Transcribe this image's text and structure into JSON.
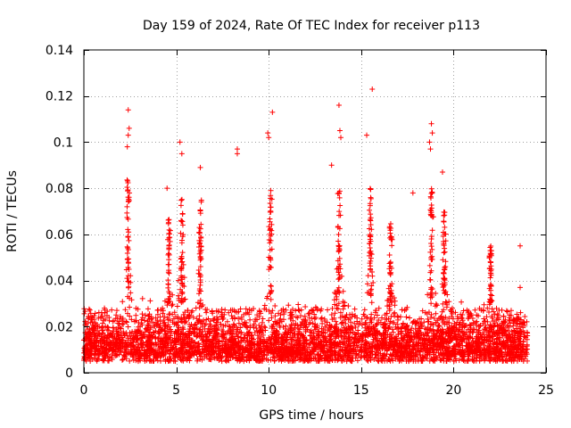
{
  "chart_data": {
    "type": "scatter",
    "title": "Day 159 of 2024, Rate Of TEC Index for receiver p113",
    "xlabel": "GPS time / hours",
    "ylabel": "ROTI / TECUs",
    "xlim": [
      0,
      25
    ],
    "ylim": [
      0,
      0.14
    ],
    "x_ticks": [
      0,
      5,
      10,
      15,
      20,
      25
    ],
    "x_tick_labels": [
      "0",
      "5",
      "10",
      "15",
      "20",
      "25"
    ],
    "y_ticks": [
      0,
      0.02,
      0.04,
      0.06,
      0.08,
      0.1,
      0.12,
      0.14
    ],
    "y_tick_labels": [
      "0",
      "0.02",
      "0.04",
      "0.06",
      "0.08",
      "0.1",
      "0.12",
      "0.14"
    ],
    "grid": true,
    "marker": "plus",
    "marker_color": "#ff0000",
    "x_range_of_data": [
      0,
      24
    ],
    "typical_band": [
      0.005,
      0.03
    ],
    "notable_points": [
      {
        "x": 2.4,
        "y": 0.114
      },
      {
        "x": 2.45,
        "y": 0.106
      },
      {
        "x": 2.4,
        "y": 0.103
      },
      {
        "x": 2.35,
        "y": 0.098
      },
      {
        "x": 5.2,
        "y": 0.1
      },
      {
        "x": 5.3,
        "y": 0.095
      },
      {
        "x": 8.3,
        "y": 0.097
      },
      {
        "x": 8.3,
        "y": 0.095
      },
      {
        "x": 10.2,
        "y": 0.113
      },
      {
        "x": 9.95,
        "y": 0.104
      },
      {
        "x": 10.0,
        "y": 0.102
      },
      {
        "x": 13.8,
        "y": 0.116
      },
      {
        "x": 13.85,
        "y": 0.105
      },
      {
        "x": 13.9,
        "y": 0.102
      },
      {
        "x": 13.4,
        "y": 0.09
      },
      {
        "x": 15.3,
        "y": 0.103
      },
      {
        "x": 15.6,
        "y": 0.123
      },
      {
        "x": 18.8,
        "y": 0.108
      },
      {
        "x": 18.85,
        "y": 0.104
      },
      {
        "x": 18.7,
        "y": 0.1
      },
      {
        "x": 18.75,
        "y": 0.097
      },
      {
        "x": 19.4,
        "y": 0.087
      },
      {
        "x": 6.3,
        "y": 0.089
      },
      {
        "x": 4.5,
        "y": 0.08
      },
      {
        "x": 17.8,
        "y": 0.078
      },
      {
        "x": 23.6,
        "y": 0.055
      },
      {
        "x": 23.6,
        "y": 0.037
      }
    ],
    "activity_peaks": [
      {
        "x": 2.4,
        "y": 0.085
      },
      {
        "x": 4.6,
        "y": 0.07
      },
      {
        "x": 5.3,
        "y": 0.08
      },
      {
        "x": 6.3,
        "y": 0.075
      },
      {
        "x": 10.1,
        "y": 0.08
      },
      {
        "x": 13.8,
        "y": 0.08
      },
      {
        "x": 15.5,
        "y": 0.08
      },
      {
        "x": 16.6,
        "y": 0.065
      },
      {
        "x": 18.8,
        "y": 0.08
      },
      {
        "x": 19.5,
        "y": 0.07
      },
      {
        "x": 22.0,
        "y": 0.055
      }
    ]
  }
}
